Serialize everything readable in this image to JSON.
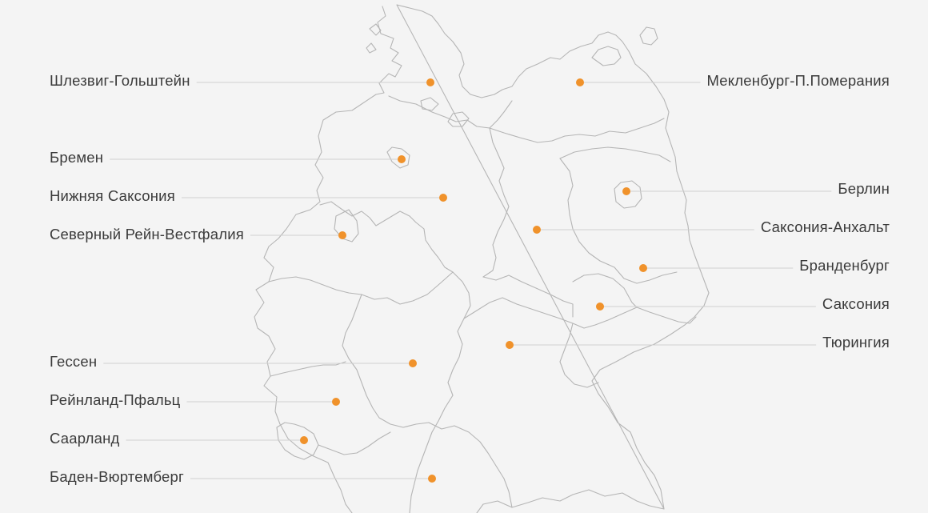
{
  "map": {
    "marker_color": "#f0922b",
    "border_color": "#b5b5b5",
    "background_color": "#f4f4f4"
  },
  "regions": [
    {
      "id": "schleswig-holstein",
      "label": "Шлезвиг-Гольштейн"
    },
    {
      "id": "bremen",
      "label": "Бремен"
    },
    {
      "id": "lower-saxony",
      "label": "Нижняя Саксония"
    },
    {
      "id": "nrw",
      "label": "Северный Рейн-Вестфалия"
    },
    {
      "id": "hesse",
      "label": "Гессен"
    },
    {
      "id": "rhineland-palatinate",
      "label": "Рейнланд-Пфальц"
    },
    {
      "id": "saarland",
      "label": "Саарланд"
    },
    {
      "id": "baden-wurttemberg",
      "label": "Баден-Вюртемберг"
    },
    {
      "id": "mecklenburg",
      "label": "Мекленбург-П.Померания"
    },
    {
      "id": "berlin",
      "label": "Берлин"
    },
    {
      "id": "saxony-anhalt",
      "label": "Саксония-Анхальт"
    },
    {
      "id": "brandenburg",
      "label": "Бранденбург"
    },
    {
      "id": "saxony",
      "label": "Саксония"
    },
    {
      "id": "thuringia",
      "label": "Тюрингия"
    }
  ]
}
